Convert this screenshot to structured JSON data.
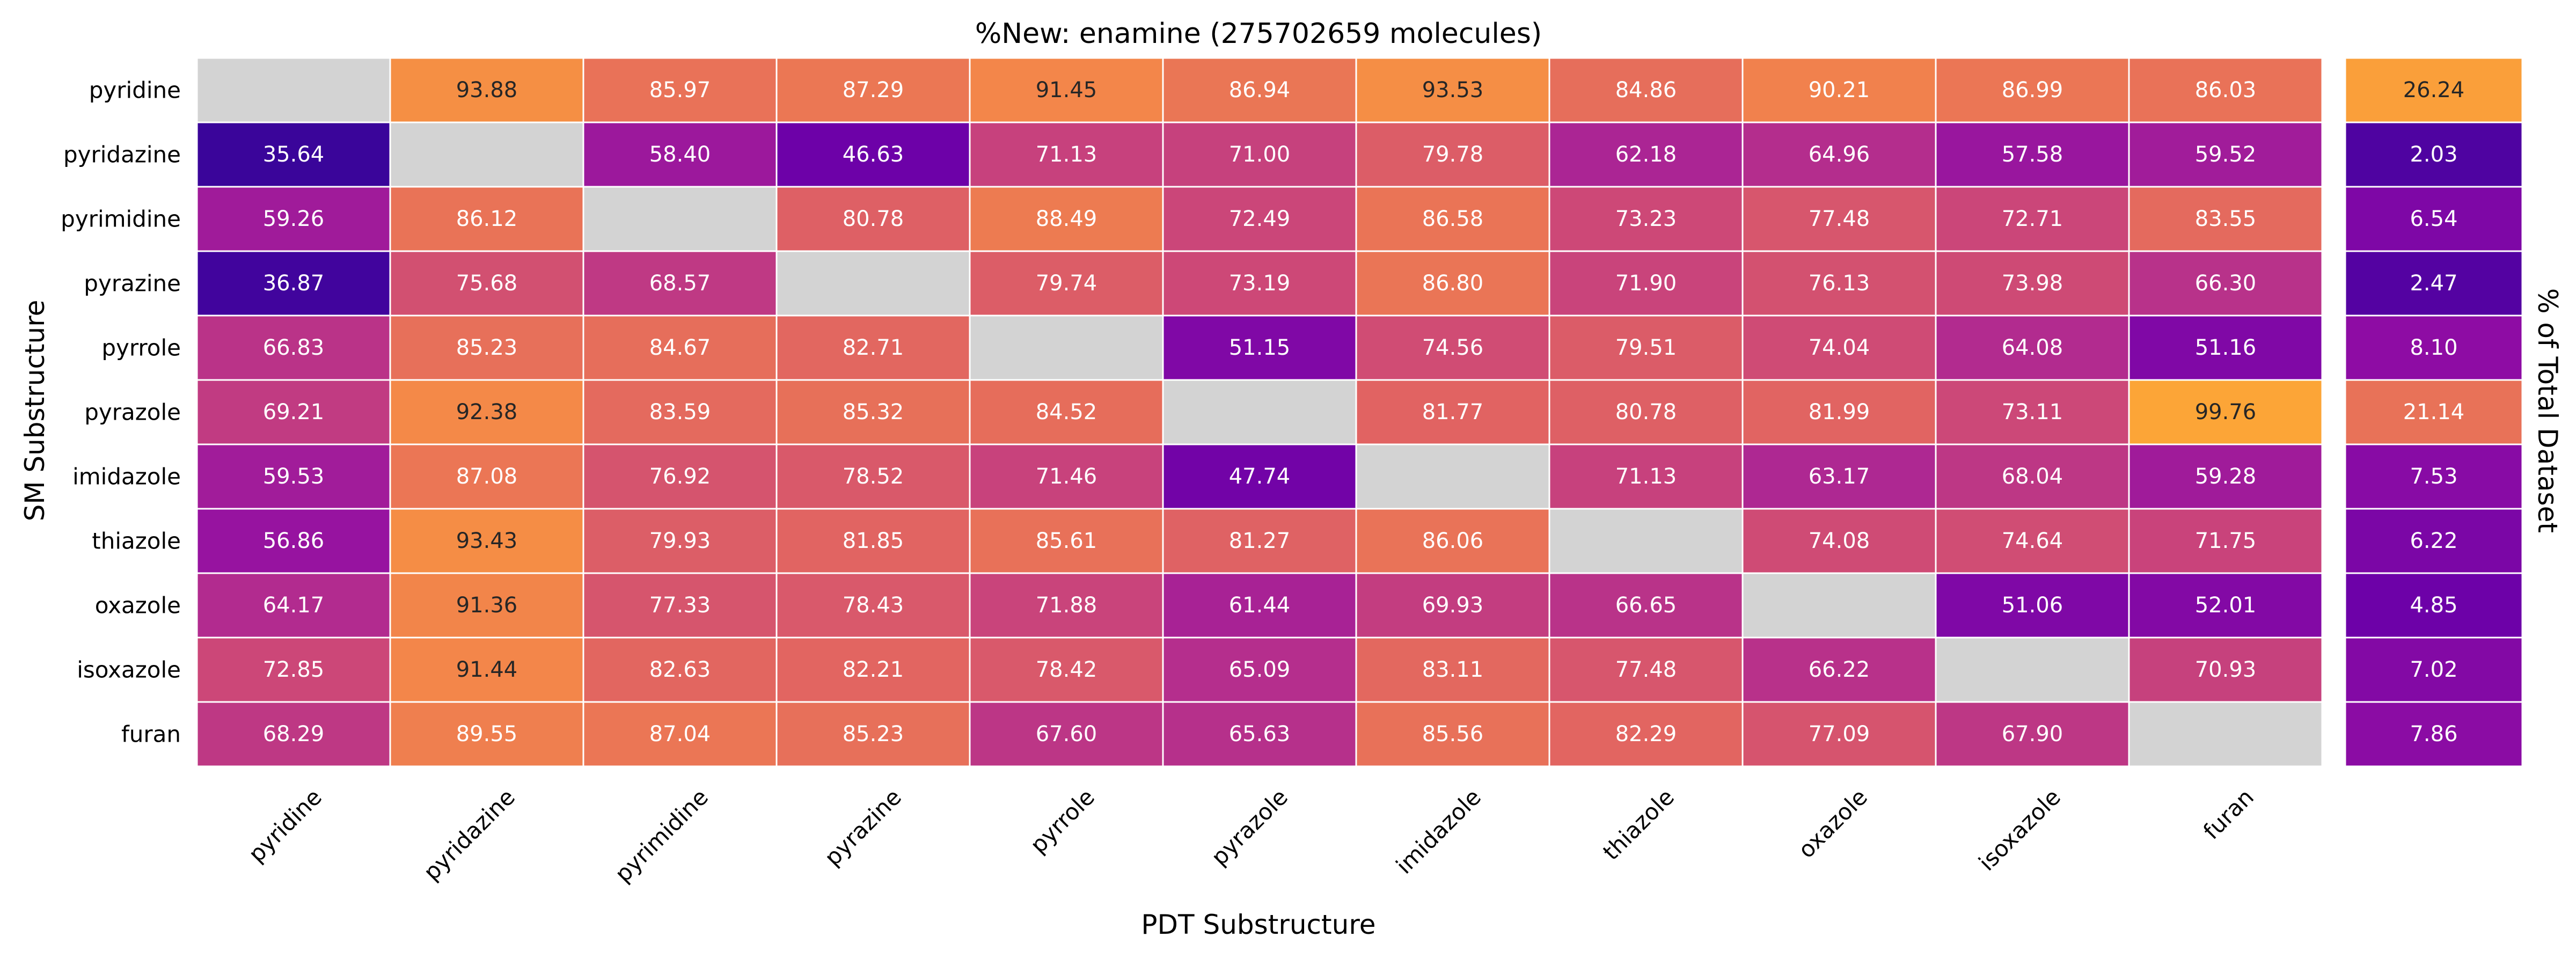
{
  "chart_data": {
    "type": "heatmap",
    "title": "%New: enamine (275702659 molecules)",
    "xlabel": "PDT Substructure",
    "ylabel": "SM Substructure",
    "side_label": "% of Total Dataset",
    "rows": [
      "pyridine",
      "pyridazine",
      "pyrimidine",
      "pyrazine",
      "pyrrole",
      "pyrazole",
      "imidazole",
      "thiazole",
      "oxazole",
      "isoxazole",
      "furan"
    ],
    "columns": [
      "pyridine",
      "pyridazine",
      "pyrimidine",
      "pyrazine",
      "pyrrole",
      "pyrazole",
      "imidazole",
      "thiazole",
      "oxazole",
      "isoxazole",
      "furan"
    ],
    "values": [
      [
        null,
        93.88,
        85.97,
        87.29,
        91.45,
        86.94,
        93.53,
        84.86,
        90.21,
        86.99,
        86.03
      ],
      [
        35.64,
        null,
        58.4,
        46.63,
        71.13,
        71.0,
        79.78,
        62.18,
        64.96,
        57.58,
        59.52
      ],
      [
        59.26,
        86.12,
        null,
        80.78,
        88.49,
        72.49,
        86.58,
        73.23,
        77.48,
        72.71,
        83.55
      ],
      [
        36.87,
        75.68,
        68.57,
        null,
        79.74,
        73.19,
        86.8,
        71.9,
        76.13,
        73.98,
        66.3
      ],
      [
        66.83,
        85.23,
        84.67,
        82.71,
        null,
        51.15,
        74.56,
        79.51,
        74.04,
        64.08,
        51.16
      ],
      [
        69.21,
        92.38,
        83.59,
        85.32,
        84.52,
        null,
        81.77,
        80.78,
        81.99,
        73.11,
        99.76
      ],
      [
        59.53,
        87.08,
        76.92,
        78.52,
        71.46,
        47.74,
        null,
        71.13,
        63.17,
        68.04,
        59.28
      ],
      [
        56.86,
        93.43,
        79.93,
        81.85,
        85.61,
        81.27,
        86.06,
        null,
        74.08,
        74.64,
        71.75
      ],
      [
        64.17,
        91.36,
        77.33,
        78.43,
        71.88,
        61.44,
        69.93,
        66.65,
        null,
        51.06,
        52.01
      ],
      [
        72.85,
        91.44,
        82.63,
        82.21,
        78.42,
        65.09,
        83.11,
        77.48,
        66.22,
        null,
        70.93
      ],
      [
        68.29,
        89.55,
        87.04,
        85.23,
        67.6,
        65.63,
        85.56,
        82.29,
        77.09,
        67.9,
        null
      ]
    ],
    "side_values": [
      26.24,
      2.03,
      6.54,
      2.47,
      8.1,
      21.14,
      7.53,
      6.22,
      4.85,
      7.02,
      7.86
    ],
    "colormap": "plasma",
    "main_color_range": [
      35,
      100
    ],
    "side_color_range": [
      0,
      27
    ],
    "missing_color": "#d3d3d3",
    "grid": false
  }
}
